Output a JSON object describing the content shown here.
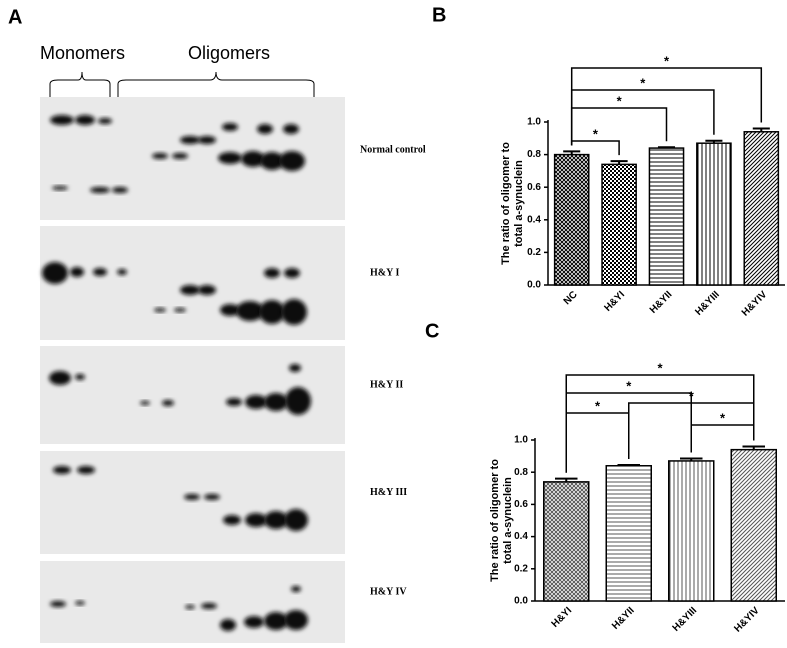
{
  "blots": {
    "panel_label": "A",
    "monomers": "Monomers",
    "oligomers": "Oligomers",
    "rows": [
      "Normal control",
      "H&Y I",
      "H&Y II",
      "H&Y III",
      "H&Y IV"
    ]
  },
  "chart_data": [
    {
      "type": "bar",
      "panel_label": "B",
      "ylabel": [
        "The ratio of  oligomer to",
        "total a-synuclein"
      ],
      "categories": [
        "NC",
        "H&YI",
        "H&YII",
        "H&YIII",
        "H&YIV"
      ],
      "values": [
        0.8,
        0.74,
        0.84,
        0.87,
        0.94
      ],
      "errors": [
        0.02,
        0.02,
        0.005,
        0.015,
        0.02
      ],
      "patterns": [
        "crosshatch",
        "checker",
        "horizontal",
        "vertical",
        "diagonal"
      ],
      "color": "#000000",
      "ylim": [
        0,
        1.0
      ],
      "yticks": [
        {
          "value": 0,
          "label": "0.0"
        },
        {
          "value": 0.2,
          "label": "0.2"
        },
        {
          "value": 0.4,
          "label": "0.4"
        },
        {
          "value": 0.6,
          "label": "0.6"
        },
        {
          "value": 0.8,
          "label": "0.8"
        },
        {
          "value": 1.0,
          "label": "1.0"
        }
      ],
      "comparisons": [
        {
          "from": "NC",
          "to": "H&YI",
          "label": "*"
        },
        {
          "from": "NC",
          "to": "H&YII",
          "label": "*"
        },
        {
          "from": "NC",
          "to": "H&YIII",
          "label": "*"
        },
        {
          "from": "NC",
          "to": "H&YIV",
          "label": "*"
        }
      ]
    },
    {
      "type": "bar",
      "panel_label": "C",
      "ylabel": [
        "The ratio of  oligomer to",
        "total a-synuclein"
      ],
      "categories": [
        "H&YI",
        "H&YII",
        "H&YIII",
        "H&YIV"
      ],
      "values": [
        0.74,
        0.84,
        0.87,
        0.94
      ],
      "errors": [
        0.02,
        0.005,
        0.015,
        0.02
      ],
      "patterns": [
        "crosshatch",
        "horizontal",
        "vertical",
        "diagonal"
      ],
      "color": "#555555",
      "ylim": [
        0,
        1.0
      ],
      "yticks": [
        {
          "value": 0,
          "label": "0.0"
        },
        {
          "value": 0.2,
          "label": "0.2"
        },
        {
          "value": 0.4,
          "label": "0.4"
        },
        {
          "value": 0.6,
          "label": "0.6"
        },
        {
          "value": 0.8,
          "label": "0.8"
        },
        {
          "value": 1.0,
          "label": "1.0"
        }
      ],
      "comparisons": [
        {
          "from": "H&YI",
          "to": "H&YIV",
          "label": "*"
        },
        {
          "from": "H&YI",
          "to": "H&YIII",
          "label": "*"
        },
        {
          "from": "H&YI",
          "to": "H&YII",
          "label": "*"
        },
        {
          "from": "H&YII",
          "to": "H&YIV",
          "label": "*"
        },
        {
          "from": "H&YIII",
          "to": "H&YIV",
          "label": "*"
        }
      ]
    }
  ]
}
